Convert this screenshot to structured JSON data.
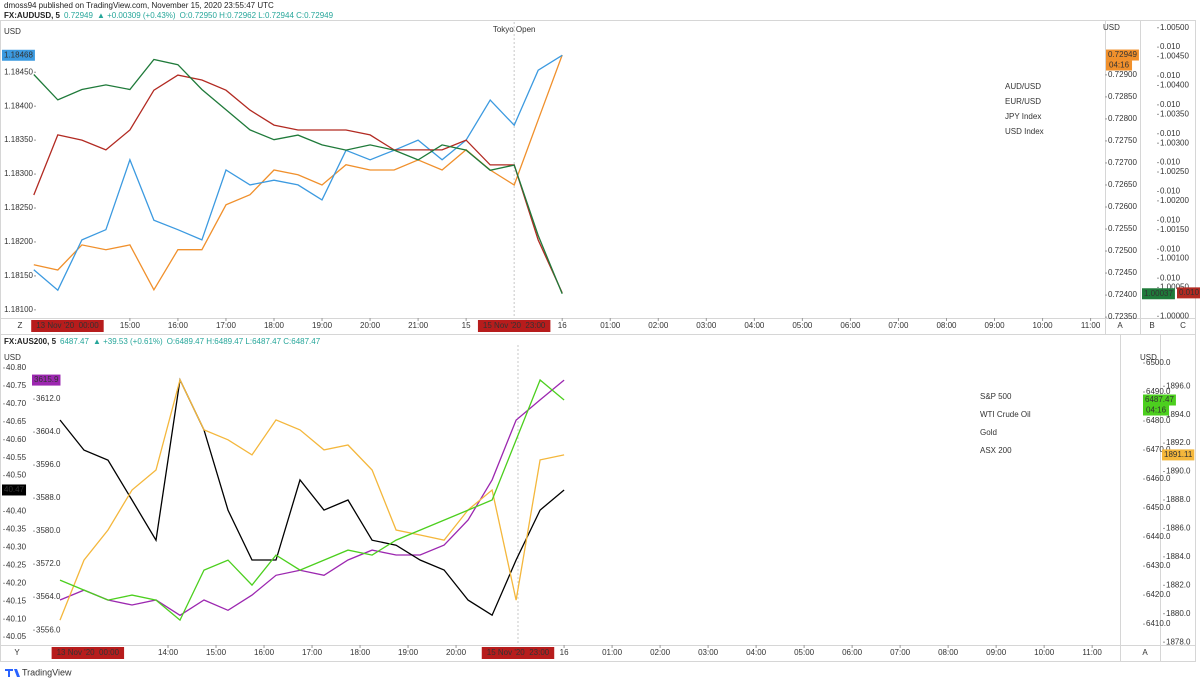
{
  "header": {
    "attribution": "dmoss94 published on TradingView.com, November 15, 2020 23:55:47 UTC"
  },
  "chart_data": [
    {
      "type": "line",
      "symbol": "FX:AUDUSD, 5",
      "last": "0.72949",
      "change": "▲ +0.00309 (+0.43%)",
      "ohlc": "O:0.72950 H:0.72962 L:0.72944 C:0.72949",
      "axis_unit": "USD",
      "corner_labels": [
        "Z",
        "A",
        "B",
        "C"
      ],
      "annotation": {
        "text": "Tokyo Open",
        "x": 8
      },
      "x_markers": [
        {
          "value": -1.3,
          "label": "13 Nov '20  00:00"
        },
        {
          "value": 8,
          "label": "15 Nov '20  23:00"
        }
      ],
      "xlim": [
        -2.6,
        20.3
      ],
      "xticks": [
        {
          "value": 0,
          "label": "15:00"
        },
        {
          "value": 1,
          "label": "16:00"
        },
        {
          "value": 2,
          "label": "17:00"
        },
        {
          "value": 3,
          "label": "18:00"
        },
        {
          "value": 4,
          "label": "19:00"
        },
        {
          "value": 5,
          "label": "20:00"
        },
        {
          "value": 6,
          "label": "21:00"
        },
        {
          "value": 7,
          "label": "15"
        },
        {
          "value": 9,
          "label": "16"
        },
        {
          "value": 10,
          "label": "01:00"
        },
        {
          "value": 11,
          "label": "02:00"
        },
        {
          "value": 12,
          "label": "03:00"
        },
        {
          "value": 13,
          "label": "04:00"
        },
        {
          "value": 14,
          "label": "05:00"
        },
        {
          "value": 15,
          "label": "06:00"
        },
        {
          "value": 16,
          "label": "07:00"
        },
        {
          "value": 17,
          "label": "08:00"
        },
        {
          "value": 18,
          "label": "09:00"
        },
        {
          "value": 19,
          "label": "10:00"
        },
        {
          "value": 20,
          "label": "11:00"
        }
      ],
      "ylim": [
        1.18088,
        1.18524
      ],
      "yticks": [
        {
          "value": 1.181,
          "label": "1.18100"
        },
        {
          "value": 1.1815,
          "label": "1.18150"
        },
        {
          "value": 1.182,
          "label": "1.18200"
        },
        {
          "value": 1.1825,
          "label": "1.18250"
        },
        {
          "value": 1.183,
          "label": "1.18300"
        },
        {
          "value": 1.1835,
          "label": "1.18350"
        },
        {
          "value": 1.184,
          "label": "1.18400"
        },
        {
          "value": 1.1845,
          "label": "1.18450"
        }
      ],
      "y2lim": [
        0.72348,
        0.7302
      ],
      "y2ticks": [
        {
          "value": 0.7235,
          "label": "0.72350"
        },
        {
          "value": 0.724,
          "label": "0.72400"
        },
        {
          "value": 0.7245,
          "label": "0.72450"
        },
        {
          "value": 0.725,
          "label": "0.72500"
        },
        {
          "value": 0.7255,
          "label": "0.72550"
        },
        {
          "value": 0.726,
          "label": "0.72600"
        },
        {
          "value": 0.7265,
          "label": "0.72650"
        },
        {
          "value": 0.727,
          "label": "0.72700"
        },
        {
          "value": 0.7275,
          "label": "0.72750"
        },
        {
          "value": 0.728,
          "label": "0.72800"
        },
        {
          "value": 0.7285,
          "label": "0.72850"
        },
        {
          "value": 0.729,
          "label": "0.72900"
        }
      ],
      "y3lim": [
        0.99997,
        1.0051
      ],
      "y3ticks": [
        {
          "value": 1,
          "label": "1.00000"
        },
        {
          "value": 1.0005,
          "label": "1.00050"
        },
        {
          "value": 1.001,
          "label": "1.00100"
        },
        {
          "value": 1.0015,
          "label": "1.00150"
        },
        {
          "value": 1.002,
          "label": "1.00200"
        },
        {
          "value": 1.0025,
          "label": "1.00250"
        },
        {
          "value": 1.003,
          "label": "1.00300"
        },
        {
          "value": 1.0035,
          "label": "1.00350"
        },
        {
          "value": 1.004,
          "label": "1.00400"
        },
        {
          "value": 1.0045,
          "label": "1.00450"
        },
        {
          "value": 1.005,
          "label": "1.00500"
        }
      ],
      "y4lim": [
        0.009462,
        0.010487
      ],
      "y4ticks": [
        {
          "value": 0.0096,
          "label": "0.010"
        },
        {
          "value": 0.0097,
          "label": "0.010"
        },
        {
          "value": 0.0098,
          "label": "0.010"
        },
        {
          "value": 0.0099,
          "label": "0.010"
        },
        {
          "value": 0.01,
          "label": "0.010"
        },
        {
          "value": 0.0101,
          "label": "0.010"
        },
        {
          "value": 0.0102,
          "label": "0.010"
        },
        {
          "value": 0.0103,
          "label": "0.010"
        },
        {
          "value": 0.0104,
          "label": "0.010"
        }
      ],
      "x": [
        -2,
        -1.5,
        -1,
        -0.5,
        0,
        0.5,
        1,
        1.5,
        2,
        2.5,
        3,
        3.5,
        4,
        4.5,
        5,
        5.5,
        6,
        6.5,
        7,
        7.5,
        8,
        8.5,
        9
      ],
      "series": [
        {
          "name": "AUD/USD",
          "color": "#f0902c",
          "axis": "y2",
          "last_label": "0.72949",
          "countdown": "04:16",
          "values": [
            0.72469,
            0.72457,
            0.72514,
            0.72503,
            0.72514,
            0.72412,
            0.72503,
            0.72503,
            0.72605,
            0.72628,
            0.72684,
            0.72673,
            0.7265,
            0.72696,
            0.72684,
            0.72684,
            0.72707,
            0.72684,
            0.7273,
            0.72684,
            0.7265,
            0.72798,
            0.72945
          ]
        },
        {
          "name": "EUR/USD",
          "color": "#3c9ae0",
          "axis": "y",
          "last_label": "1.18468",
          "values": [
            1.18159,
            1.18129,
            1.18203,
            1.18218,
            1.18321,
            1.18232,
            1.18218,
            1.18203,
            1.18306,
            1.18284,
            1.18291,
            1.18284,
            1.18262,
            1.18335,
            1.18321,
            1.18335,
            1.1835,
            1.18321,
            1.1835,
            1.18409,
            1.18372,
            1.18453,
            1.18475
          ]
        },
        {
          "name": "JPY Index",
          "color": "#b22a22",
          "axis": "y4",
          "last_label": "0.010",
          "values": [
            0.009888,
            0.010096,
            0.010078,
            0.010044,
            0.010113,
            0.010251,
            0.010303,
            0.010286,
            0.010251,
            0.010182,
            0.01013,
            0.010113,
            0.010113,
            0.010113,
            0.010096,
            0.010044,
            0.010044,
            0.010044,
            0.010078,
            0.009992,
            0.009992,
            0.009732,
            0.009549
          ]
        },
        {
          "name": "USD Index",
          "color": "#1f7a3a",
          "axis": "y3",
          "last_label": "1.00037",
          "values": [
            1.00419,
            1.00375,
            1.00393,
            1.00401,
            1.00393,
            1.00445,
            1.00436,
            1.00393,
            1.00358,
            1.00323,
            1.00306,
            1.00314,
            1.00297,
            1.00288,
            1.00297,
            1.00288,
            1.00271,
            1.00297,
            1.00288,
            1.00253,
            1.00262,
            1.0014,
            1.00039
          ]
        }
      ]
    },
    {
      "type": "line",
      "symbol": "FX:AUS200, 5",
      "last": "6487.47",
      "change": "▲ +39.53 (+0.61%)",
      "ohlc": "O:6489.47 H:6489.47 L:6487.47 C:6487.47",
      "axis_unit": "USD",
      "corner_labels": [
        "Y",
        "A"
      ],
      "x_markers": [
        {
          "value": -1.67,
          "label": "13 Nov '20  00:00"
        },
        {
          "value": 7.29,
          "label": "15 Nov '20  23:00"
        }
      ],
      "xlim": [
        -2.875,
        19.83
      ],
      "xticks": [
        {
          "value": 0,
          "label": "14:00"
        },
        {
          "value": 1,
          "label": "15:00"
        },
        {
          "value": 2,
          "label": "16:00"
        },
        {
          "value": 3,
          "label": "17:00"
        },
        {
          "value": 4,
          "label": "18:00"
        },
        {
          "value": 5,
          "label": "19:00"
        },
        {
          "value": 6,
          "label": "20:00"
        },
        {
          "value": 8.25,
          "label": "16"
        },
        {
          "value": 9.25,
          "label": "01:00"
        },
        {
          "value": 10.25,
          "label": "02:00"
        },
        {
          "value": 11.25,
          "label": "03:00"
        },
        {
          "value": 12.25,
          "label": "04:00"
        },
        {
          "value": 13.25,
          "label": "05:00"
        },
        {
          "value": 14.25,
          "label": "06:00"
        },
        {
          "value": 15.25,
          "label": "07:00"
        },
        {
          "value": 16.25,
          "label": "08:00"
        },
        {
          "value": 17.25,
          "label": "09:00"
        },
        {
          "value": 18.25,
          "label": "10:00"
        },
        {
          "value": 19.25,
          "label": "11:00"
        }
      ],
      "ylim": [
        40.028,
        40.864
      ],
      "yticks": [
        40.05,
        {
          "value": 40.1,
          "label": "40.10"
        },
        40.15,
        {
          "value": 40.2,
          "label": "40.20"
        },
        40.25,
        {
          "value": 40.3,
          "label": "40.30"
        },
        40.35,
        {
          "value": 40.4,
          "label": "40.40"
        },
        40.45,
        {
          "value": 40.5,
          "label": "40.50"
        },
        40.55,
        {
          "value": 40.6,
          "label": "40.60"
        },
        40.65,
        {
          "value": 40.7,
          "label": "40.70"
        },
        40.75,
        {
          "value": 40.8,
          "label": "40.80"
        }
      ],
      "y2lim": [
        6402.8,
        6506.2
      ],
      "y2ticks": [
        {
          "value": 6410,
          "label": "6410.0"
        },
        {
          "value": 6420,
          "label": "6420.0"
        },
        {
          "value": 6430,
          "label": "6430.0"
        },
        {
          "value": 6440,
          "label": "6440.0"
        },
        {
          "value": 6450,
          "label": "6450.0"
        },
        {
          "value": 6460,
          "label": "6460.0"
        },
        {
          "value": 6470,
          "label": "6470.0"
        },
        {
          "value": 6480,
          "label": "6480.0"
        },
        {
          "value": 6490,
          "label": "6490.0"
        },
        {
          "value": 6500,
          "label": "6500.0"
        }
      ],
      "y3lim": [
        3552.4,
        3625.1
      ],
      "y3ticks": [
        {
          "value": 3556,
          "label": "3556.0"
        },
        {
          "value": 3564,
          "label": "3564.0"
        },
        {
          "value": 3572,
          "label": "3572.0"
        },
        {
          "value": 3580,
          "label": "3580.0"
        },
        {
          "value": 3588,
          "label": "3588.0"
        },
        {
          "value": 3596,
          "label": "3596.0"
        },
        {
          "value": 3604,
          "label": "3604.0"
        },
        {
          "value": 3612,
          "label": "3612.0"
        }
      ],
      "y4lim": [
        1877.8,
        1898.9
      ],
      "y4ticks": [
        {
          "value": 1878,
          "label": "1878.0"
        },
        {
          "value": 1880,
          "label": "1880.0"
        },
        {
          "value": 1882,
          "label": "1882.0"
        },
        {
          "value": 1884,
          "label": "1884.0"
        },
        {
          "value": 1886,
          "label": "1886.0"
        },
        {
          "value": 1888,
          "label": "1888.0"
        },
        {
          "value": 1890,
          "label": "1890.0"
        },
        {
          "value": 1892,
          "label": "1892.0"
        },
        {
          "value": 1894,
          "label": "1894.0"
        },
        {
          "value": 1896,
          "label": "1896.0"
        }
      ],
      "x": [
        -2.25,
        -1.75,
        -1.25,
        -0.75,
        -0.25,
        0.25,
        0.75,
        1.25,
        1.75,
        2.25,
        2.75,
        3.25,
        3.75,
        4.25,
        4.75,
        5.25,
        5.75,
        6.25,
        6.75,
        7.25,
        7.75,
        8.25
      ],
      "series": [
        {
          "name": "S&P 500",
          "color": "#9c27b0",
          "axis": "y3",
          "last_label": "3615.9",
          "values": [
            3563.3,
            3565.7,
            3563.3,
            3562.1,
            3563.3,
            3559.6,
            3563.3,
            3560.8,
            3564.5,
            3569.3,
            3570.5,
            3569.3,
            3573,
            3575.4,
            3574.2,
            3574.2,
            3576.6,
            3582.7,
            3592.4,
            3606.9,
            3611.8,
            3616.6
          ]
        },
        {
          "name": "WTI Crude Oil",
          "color": "#000000",
          "axis": "y",
          "last_label": "40.47",
          "values": [
            40.655,
            40.571,
            40.543,
            40.432,
            40.32,
            40.767,
            40.627,
            40.404,
            40.265,
            40.265,
            40.488,
            40.404,
            40.432,
            40.32,
            40.306,
            40.265,
            40.237,
            40.153,
            40.111,
            40.265,
            40.404,
            40.46
          ]
        },
        {
          "name": "Gold",
          "color": "#f4b73c",
          "axis": "y4",
          "last_label": "1891.11",
          "values": [
            1879.55,
            1883.77,
            1885.89,
            1888.7,
            1890.11,
            1896.45,
            1892.93,
            1892.23,
            1891.17,
            1893.63,
            1892.93,
            1891.52,
            1891.87,
            1890.11,
            1885.89,
            1885.54,
            1885.18,
            1887.3,
            1888.7,
            1880.96,
            1890.82,
            1891.17
          ]
        },
        {
          "name": "ASX 200",
          "color": "#4ccf1e",
          "axis": "y2",
          "last_label": "6487.47",
          "countdown": "04:16",
          "values": [
            6425.17,
            6421.72,
            6418.28,
            6420,
            6418.28,
            6411.38,
            6428.62,
            6432.07,
            6423.45,
            6433.79,
            6428.62,
            6432.07,
            6435.52,
            6433.79,
            6438.97,
            6442.41,
            6445.86,
            6449.31,
            6452.76,
            6473.45,
            6494.14,
            6487.24
          ]
        }
      ]
    }
  ],
  "footer": {
    "brand": "TradingView"
  }
}
